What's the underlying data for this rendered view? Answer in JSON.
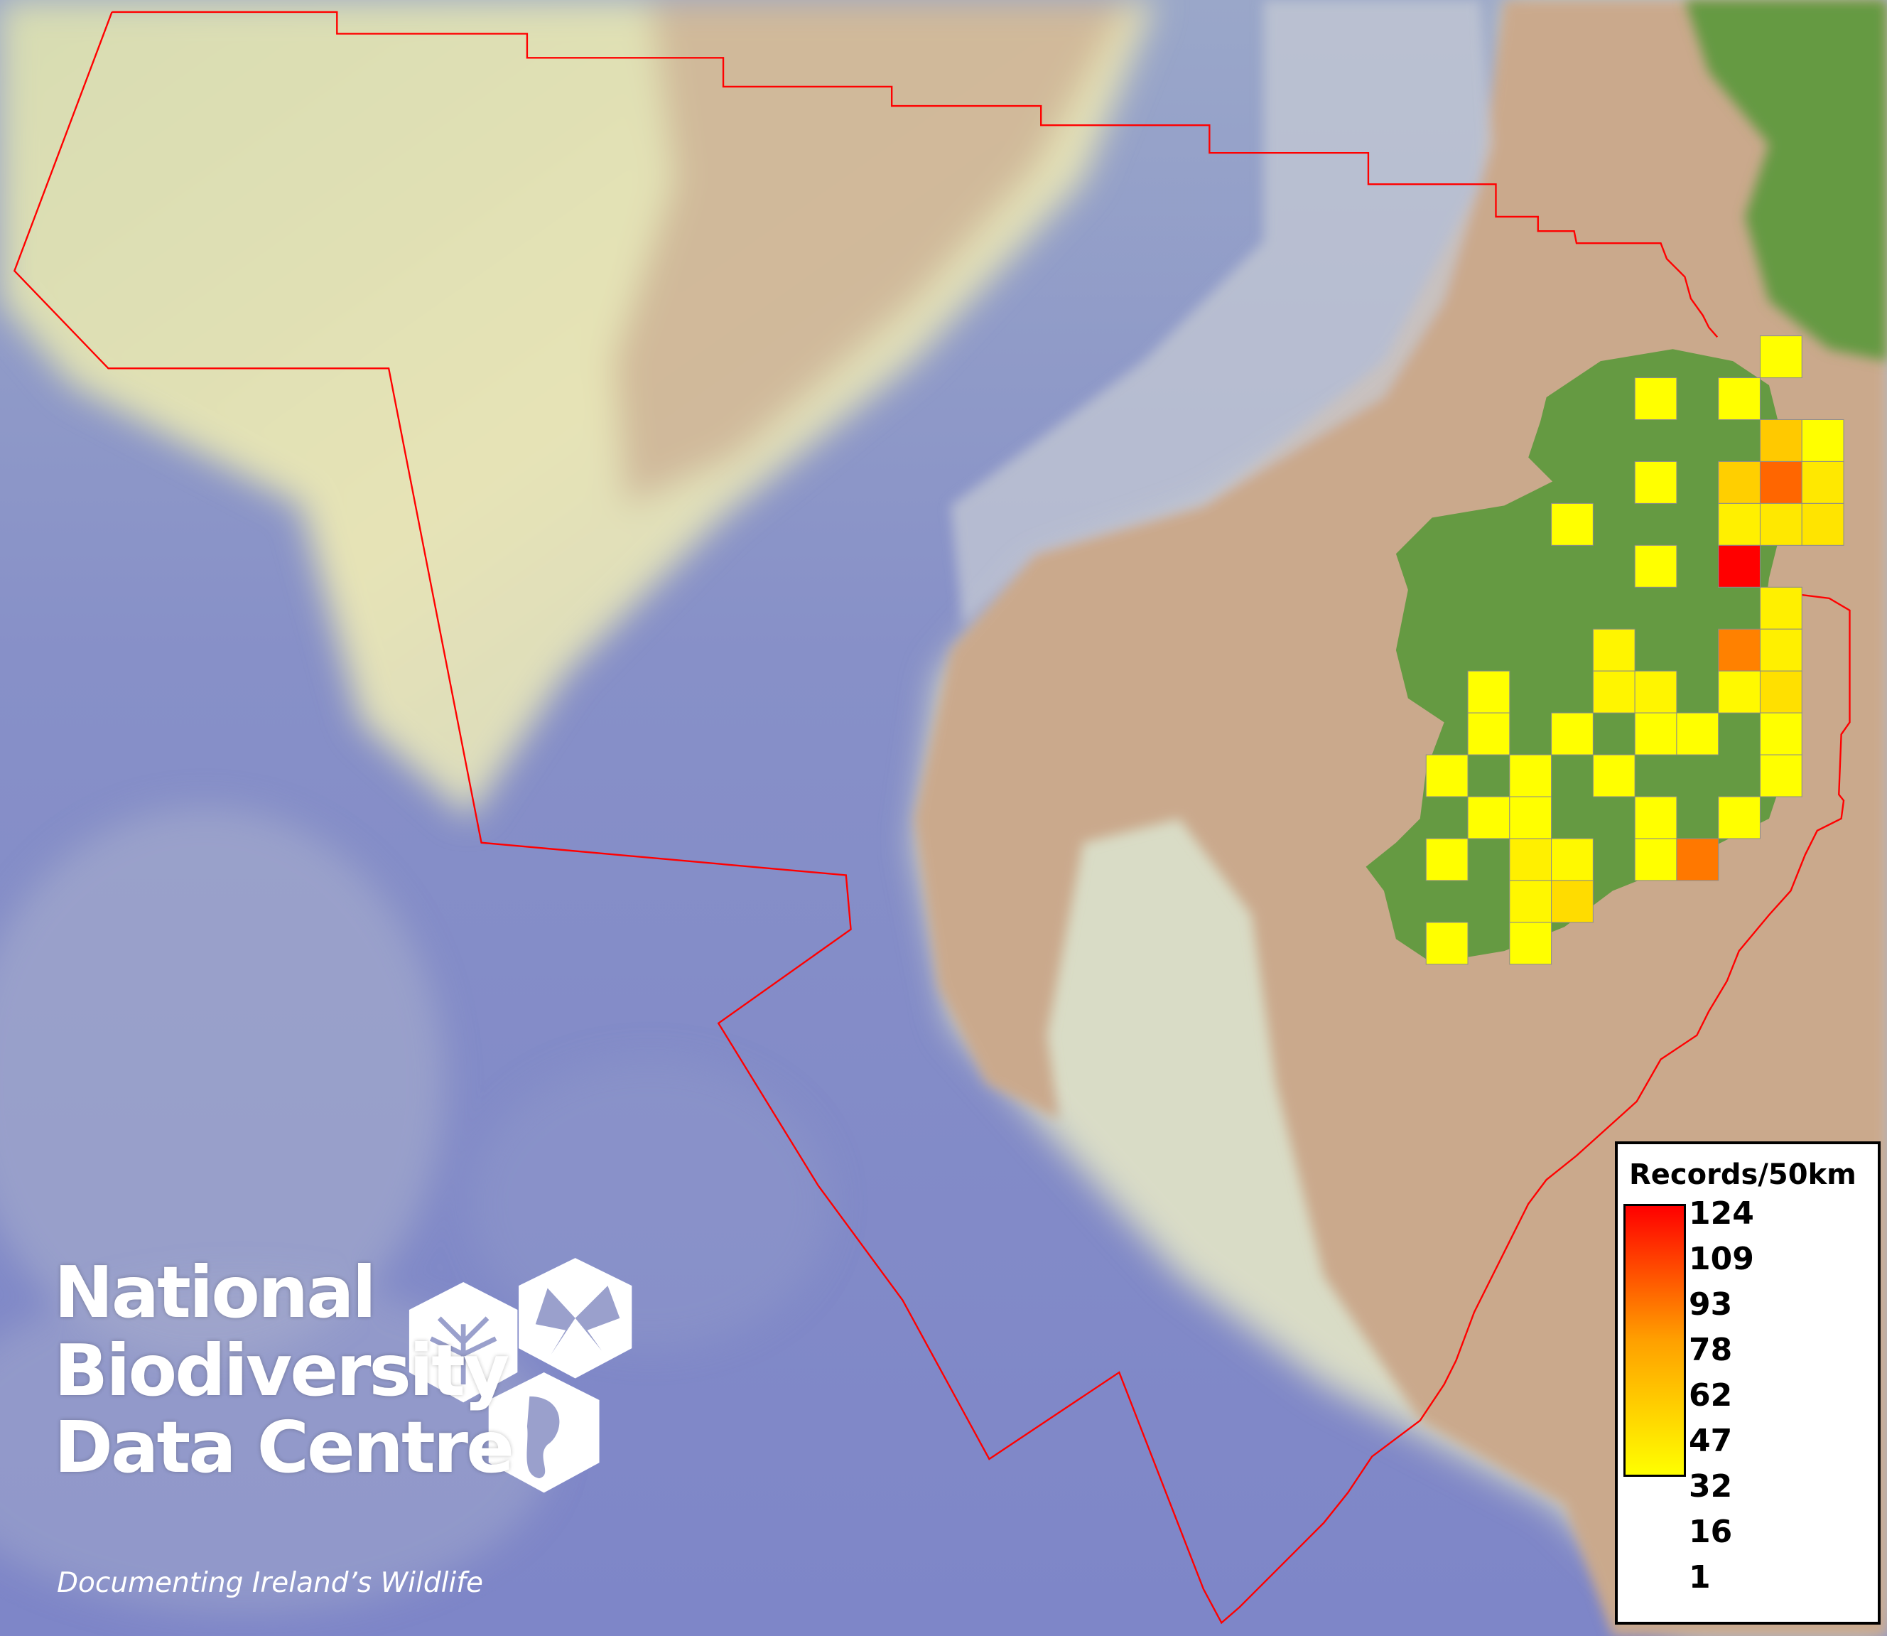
{
  "map": {
    "colors": {
      "sea": "#8189c9",
      "shelf": "#e2e4b4",
      "land_shade": "#c9a98c",
      "ireland": "#659a42",
      "boundary": "#ff0000",
      "scale_low": "#ffff00",
      "scale_high": "#ff0000",
      "cell_border": "#8c8c8c"
    },
    "record_cells": [
      1,
      1,
      1,
      27,
      1,
      1,
      24,
      75,
      12,
      1,
      8,
      12,
      14,
      1,
      124,
      8,
      6,
      62,
      8,
      1,
      6,
      6,
      4,
      16,
      1,
      1,
      1,
      1,
      1,
      1,
      1,
      1,
      1,
      1,
      1,
      1,
      1,
      1,
      8,
      4,
      1,
      66,
      5,
      18,
      1,
      1
    ]
  },
  "legend": {
    "title": "Records/50km",
    "ticks": [
      "124",
      "109",
      "93",
      "78",
      "62",
      "47",
      "32",
      "16",
      "1"
    ],
    "min": 1,
    "max": 124
  },
  "logo": {
    "line1": "National",
    "line2": "Biodiversity",
    "line3": "Data Centre",
    "tagline": "Documenting Ireland’s Wildlife",
    "icons": [
      "tree-icon",
      "butterfly-icon",
      "seahorse-icon"
    ]
  }
}
